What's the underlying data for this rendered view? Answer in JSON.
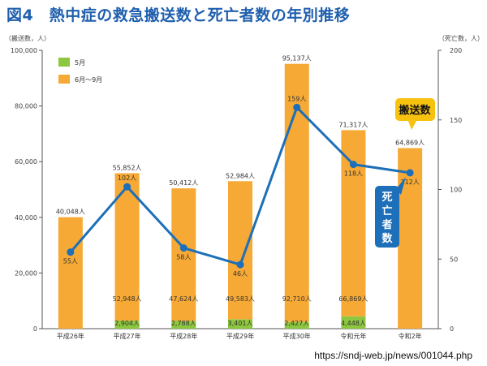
{
  "title": "図4　熱中症の救急搬送数と死亡者数の年別推移",
  "source_url": "https://sndj-web.jp/news/001044.php",
  "colors": {
    "may": "#8dc63f",
    "jun_sep": "#f6a934",
    "line": "#1c6fb8",
    "title": "#1f5fae",
    "callout_transport": "#f7c10f",
    "callout_death": "#1c6fb8"
  },
  "chart_data": {
    "type": "bar",
    "title": "図4　熱中症の救急搬送数と死亡者数の年別推移",
    "categories": [
      "平成26年",
      "平成27年",
      "平成28年",
      "平成29年",
      "平成30年",
      "令和元年",
      "令和2年"
    ],
    "left_axis": {
      "unit_label": "（搬送数，人）",
      "ylim": [
        0,
        100000
      ],
      "ticks": [
        0,
        20000,
        40000,
        60000,
        80000,
        100000
      ],
      "tick_labels": [
        "0",
        "20,000",
        "40,000",
        "60,000",
        "80,000",
        "100,000"
      ]
    },
    "right_axis": {
      "unit_label": "（死亡数，人）",
      "ylim": [
        0,
        200
      ],
      "ticks": [
        0,
        50,
        100,
        150,
        200
      ],
      "tick_labels": [
        "0",
        "50",
        "100",
        "150",
        "200"
      ]
    },
    "legend": {
      "placement": "top-left",
      "items": [
        "5月",
        "6月～9月"
      ]
    },
    "series": [
      {
        "name": "5月",
        "stack": "transport",
        "values": [
          0,
          2904,
          2788,
          3401,
          2427,
          4448,
          0
        ],
        "value_labels": [
          "",
          "2,904人",
          "2,788人",
          "3,401人",
          "2,427人",
          "4,448人",
          ""
        ]
      },
      {
        "name": "6月～9月",
        "stack": "transport",
        "values": [
          40048,
          52948,
          47624,
          49583,
          92710,
          66869,
          64869
        ],
        "value_labels": [
          "",
          "52,948人",
          "47,624人",
          "49,583人",
          "92,710人",
          "66,869人",
          ""
        ]
      },
      {
        "name": "死亡者数",
        "type": "line",
        "axis": "right",
        "values": [
          55,
          102,
          58,
          46,
          159,
          118,
          112
        ],
        "value_labels": [
          "55人",
          "102人",
          "58人",
          "46人",
          "159人",
          "118人",
          "112人"
        ]
      }
    ],
    "totals": [
      40048,
      55852,
      50412,
      52984,
      95137,
      71317,
      64869
    ],
    "total_labels": [
      "40,048人",
      "55,852人",
      "50,412人",
      "52,984人",
      "95,137人",
      "71,317人",
      "64,869人"
    ],
    "callouts": {
      "transport": "搬送数",
      "death": [
        "死",
        "亡",
        "者",
        "数"
      ]
    },
    "grid": false
  }
}
